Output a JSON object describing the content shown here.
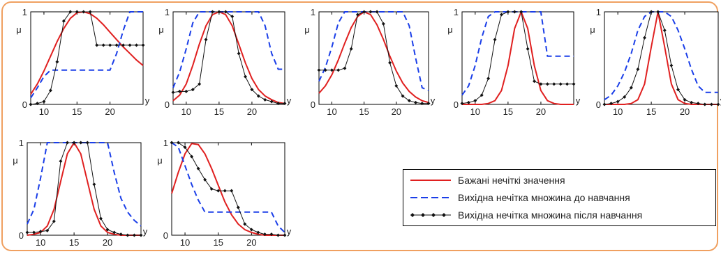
{
  "colors": {
    "desired": "#e02020",
    "before": "#1a3ee8",
    "after": "#111111",
    "frame": "#f0a060"
  },
  "legend": {
    "items": [
      {
        "label": "Бажані нечіткі значення",
        "style": "solid-red"
      },
      {
        "label": "Вихідна нечітка множина до навчання",
        "style": "dashed-blue"
      },
      {
        "label": "Вихідна нечітка множина після навчання",
        "style": "black-diamond-markers"
      }
    ]
  },
  "axis_text": {
    "y_label": "μ",
    "x_label": "y"
  },
  "chart_data": [
    {
      "type": "line",
      "xlim": [
        8,
        25
      ],
      "ylim": [
        0,
        1
      ],
      "xticks": [
        10,
        15,
        20
      ],
      "yticks": [
        0,
        1
      ],
      "series": [
        {
          "role": "desired",
          "x": [
            8,
            9,
            10,
            11,
            12,
            13,
            14,
            15,
            16,
            17,
            18,
            19,
            20,
            21,
            22,
            23,
            24,
            25
          ],
          "values": [
            0.11,
            0.22,
            0.36,
            0.52,
            0.68,
            0.82,
            0.93,
            0.99,
            1.0,
            0.98,
            0.93,
            0.86,
            0.78,
            0.7,
            0.62,
            0.55,
            0.48,
            0.42
          ]
        },
        {
          "role": "before",
          "x": [
            8,
            9,
            10,
            11,
            12,
            13,
            14,
            15,
            16,
            17,
            18,
            19,
            20,
            21,
            22,
            23,
            24,
            25
          ],
          "values": [
            0.07,
            0.18,
            0.3,
            0.37,
            0.37,
            0.37,
            0.37,
            0.37,
            0.37,
            0.37,
            0.37,
            0.37,
            0.37,
            0.55,
            0.8,
            1.0,
            1.0,
            1.0
          ]
        },
        {
          "role": "after",
          "x": [
            8,
            9,
            10,
            11,
            12,
            13,
            14,
            15,
            16,
            17,
            18,
            19,
            20,
            21,
            22,
            23,
            24,
            25
          ],
          "values": [
            0.0,
            0.01,
            0.03,
            0.15,
            0.46,
            0.9,
            1.0,
            1.0,
            1.0,
            1.0,
            0.64,
            0.64,
            0.64,
            0.64,
            0.64,
            0.64,
            0.64,
            0.64
          ]
        }
      ]
    },
    {
      "type": "line",
      "xlim": [
        8,
        25
      ],
      "ylim": [
        0,
        1
      ],
      "xticks": [
        10,
        15,
        20
      ],
      "yticks": [
        0,
        1
      ],
      "series": [
        {
          "role": "desired",
          "x": [
            8,
            9,
            10,
            11,
            12,
            13,
            14,
            15,
            16,
            17,
            18,
            19,
            20,
            21,
            22,
            23,
            24,
            25
          ],
          "values": [
            0.04,
            0.1,
            0.22,
            0.42,
            0.65,
            0.85,
            0.97,
            1.0,
            0.97,
            0.85,
            0.65,
            0.45,
            0.28,
            0.16,
            0.09,
            0.05,
            0.02,
            0.01
          ]
        },
        {
          "role": "before",
          "x": [
            8,
            9,
            10,
            11,
            12,
            13,
            14,
            15,
            16,
            17,
            18,
            19,
            20,
            21,
            22,
            23,
            24,
            25
          ],
          "values": [
            0.18,
            0.35,
            0.6,
            0.88,
            1.0,
            1.0,
            1.0,
            1.0,
            1.0,
            1.0,
            1.0,
            1.0,
            1.0,
            1.0,
            0.85,
            0.55,
            0.38,
            0.38
          ]
        },
        {
          "role": "after",
          "x": [
            8,
            9,
            10,
            11,
            12,
            13,
            14,
            15,
            16,
            17,
            18,
            19,
            20,
            21,
            22,
            23,
            24,
            25
          ],
          "values": [
            0.13,
            0.14,
            0.14,
            0.16,
            0.22,
            0.7,
            1.0,
            1.0,
            1.0,
            0.95,
            0.55,
            0.3,
            0.16,
            0.09,
            0.05,
            0.03,
            0.01,
            0.01
          ]
        }
      ]
    },
    {
      "type": "line",
      "xlim": [
        8,
        25
      ],
      "ylim": [
        0,
        1
      ],
      "xticks": [
        10,
        15,
        20
      ],
      "yticks": [
        0,
        1
      ],
      "series": [
        {
          "role": "desired",
          "x": [
            8,
            9,
            10,
            11,
            12,
            13,
            14,
            15,
            16,
            17,
            18,
            19,
            20,
            21,
            22,
            23,
            24,
            25
          ],
          "values": [
            0.12,
            0.2,
            0.32,
            0.48,
            0.66,
            0.83,
            0.95,
            1.0,
            0.97,
            0.86,
            0.7,
            0.52,
            0.36,
            0.23,
            0.14,
            0.08,
            0.04,
            0.02
          ]
        },
        {
          "role": "before",
          "x": [
            8,
            9,
            10,
            11,
            12,
            13,
            14,
            15,
            16,
            17,
            18,
            19,
            20,
            21,
            22,
            23,
            24,
            25
          ],
          "values": [
            0.25,
            0.4,
            0.62,
            0.88,
            1.0,
            1.0,
            1.0,
            1.0,
            1.0,
            1.0,
            1.0,
            1.0,
            1.0,
            1.0,
            0.85,
            0.5,
            0.18,
            0.15
          ]
        },
        {
          "role": "after",
          "x": [
            8,
            9,
            10,
            11,
            12,
            13,
            14,
            15,
            16,
            17,
            18,
            19,
            20,
            21,
            22,
            23,
            24,
            25
          ],
          "values": [
            0.37,
            0.37,
            0.37,
            0.37,
            0.39,
            0.6,
            0.97,
            1.0,
            1.0,
            1.0,
            0.87,
            0.45,
            0.2,
            0.09,
            0.04,
            0.02,
            0.01,
            0.01
          ]
        }
      ]
    },
    {
      "type": "line",
      "xlim": [
        8,
        25
      ],
      "ylim": [
        0,
        1
      ],
      "xticks": [
        10,
        15,
        20
      ],
      "yticks": [
        0,
        1
      ],
      "series": [
        {
          "role": "desired",
          "x": [
            8,
            9,
            10,
            11,
            12,
            13,
            14,
            15,
            16,
            17,
            18,
            19,
            20,
            21,
            22,
            23,
            24,
            25
          ],
          "values": [
            0.0,
            0.0,
            0.0,
            0.0,
            0.01,
            0.04,
            0.15,
            0.42,
            0.82,
            1.0,
            0.82,
            0.42,
            0.15,
            0.04,
            0.01,
            0.0,
            0.0,
            0.0
          ]
        },
        {
          "role": "before",
          "x": [
            8,
            9,
            10,
            11,
            12,
            13,
            14,
            15,
            16,
            17,
            18,
            19,
            20,
            21,
            22,
            23,
            24,
            25
          ],
          "values": [
            0.1,
            0.2,
            0.42,
            0.72,
            0.95,
            1.0,
            1.0,
            1.0,
            1.0,
            1.0,
            1.0,
            1.0,
            1.0,
            0.52,
            0.52,
            0.52,
            0.52,
            0.52
          ]
        },
        {
          "role": "after",
          "x": [
            8,
            9,
            10,
            11,
            12,
            13,
            14,
            15,
            16,
            17,
            18,
            19,
            20,
            21,
            22,
            23,
            24,
            25
          ],
          "values": [
            0.01,
            0.02,
            0.04,
            0.1,
            0.28,
            0.7,
            0.97,
            1.0,
            1.0,
            1.0,
            0.6,
            0.25,
            0.22,
            0.22,
            0.22,
            0.22,
            0.22,
            0.22
          ]
        }
      ]
    },
    {
      "type": "line",
      "xlim": [
        8,
        25
      ],
      "ylim": [
        0,
        1
      ],
      "xticks": [
        10,
        15,
        20
      ],
      "yticks": [
        0,
        1
      ],
      "series": [
        {
          "role": "desired",
          "x": [
            8,
            9,
            10,
            11,
            12,
            13,
            14,
            15,
            16,
            17,
            18,
            19,
            20,
            21,
            22,
            23,
            24,
            25
          ],
          "values": [
            0.0,
            0.0,
            0.0,
            0.0,
            0.01,
            0.05,
            0.22,
            0.62,
            1.0,
            0.62,
            0.22,
            0.05,
            0.01,
            0.0,
            0.0,
            0.0,
            0.0,
            0.0
          ]
        },
        {
          "role": "before",
          "x": [
            8,
            9,
            10,
            11,
            12,
            13,
            14,
            15,
            16,
            17,
            18,
            19,
            20,
            21,
            22,
            23,
            24,
            25
          ],
          "values": [
            0.05,
            0.1,
            0.2,
            0.35,
            0.55,
            0.8,
            0.95,
            1.0,
            1.0,
            1.0,
            0.95,
            0.8,
            0.6,
            0.38,
            0.2,
            0.13,
            0.13,
            0.13
          ]
        },
        {
          "role": "after",
          "x": [
            8,
            9,
            10,
            11,
            12,
            13,
            14,
            15,
            16,
            17,
            18,
            19,
            20,
            21,
            22,
            23,
            24,
            25
          ],
          "values": [
            0.0,
            0.01,
            0.03,
            0.08,
            0.18,
            0.38,
            0.72,
            1.0,
            1.0,
            0.8,
            0.42,
            0.16,
            0.05,
            0.02,
            0.01,
            0.0,
            0.0,
            0.0
          ]
        }
      ]
    },
    {
      "type": "line",
      "xlim": [
        8,
        25
      ],
      "ylim": [
        0,
        1
      ],
      "xticks": [
        10,
        15,
        20
      ],
      "yticks": [
        0,
        1
      ],
      "series": [
        {
          "role": "desired",
          "x": [
            8,
            9,
            10,
            11,
            12,
            13,
            14,
            15,
            16,
            17,
            18,
            19,
            20,
            21,
            22,
            23,
            24,
            25
          ],
          "values": [
            0.0,
            0.01,
            0.03,
            0.1,
            0.28,
            0.58,
            0.88,
            1.0,
            0.88,
            0.58,
            0.28,
            0.1,
            0.03,
            0.01,
            0.0,
            0.0,
            0.0,
            0.0
          ]
        },
        {
          "role": "before",
          "x": [
            8,
            9,
            10,
            11,
            12,
            13,
            14,
            15,
            16,
            17,
            18,
            19,
            20,
            21,
            22,
            23,
            24,
            25
          ],
          "values": [
            0.12,
            0.28,
            0.62,
            1.0,
            1.0,
            1.0,
            1.0,
            1.0,
            1.0,
            1.0,
            1.0,
            1.0,
            1.0,
            0.68,
            0.4,
            0.25,
            0.16,
            0.1
          ]
        },
        {
          "role": "after",
          "x": [
            8,
            9,
            10,
            11,
            12,
            13,
            14,
            15,
            16,
            17,
            18,
            19,
            20,
            21,
            22,
            23,
            24,
            25
          ],
          "values": [
            0.03,
            0.03,
            0.04,
            0.05,
            0.15,
            0.8,
            1.0,
            1.0,
            1.0,
            1.0,
            0.55,
            0.18,
            0.06,
            0.03,
            0.01,
            0.0,
            0.0,
            0.0
          ]
        }
      ]
    },
    {
      "type": "line",
      "xlim": [
        8,
        25
      ],
      "ylim": [
        0,
        1
      ],
      "xticks": [
        10,
        15,
        20
      ],
      "yticks": [
        0,
        1
      ],
      "series": [
        {
          "role": "desired",
          "x": [
            8,
            9,
            10,
            11,
            12,
            13,
            14,
            15,
            16,
            17,
            18,
            19,
            20,
            21,
            22,
            23,
            24,
            25
          ],
          "values": [
            0.45,
            0.68,
            0.88,
            0.99,
            0.98,
            0.88,
            0.72,
            0.54,
            0.36,
            0.22,
            0.12,
            0.06,
            0.03,
            0.01,
            0.0,
            0.0,
            0.0,
            0.0
          ]
        },
        {
          "role": "before",
          "x": [
            8,
            9,
            10,
            11,
            12,
            13,
            14,
            15,
            16,
            17,
            18,
            19,
            20,
            21,
            22,
            23,
            24,
            25
          ],
          "values": [
            1.0,
            0.95,
            0.75,
            0.55,
            0.38,
            0.25,
            0.25,
            0.25,
            0.25,
            0.25,
            0.25,
            0.25,
            0.25,
            0.25,
            0.25,
            0.25,
            0.1,
            0.03
          ]
        },
        {
          "role": "after",
          "x": [
            8,
            9,
            10,
            11,
            12,
            13,
            14,
            15,
            16,
            17,
            18,
            19,
            20,
            21,
            22,
            23,
            24,
            25
          ],
          "values": [
            1.0,
            1.0,
            0.95,
            0.85,
            0.72,
            0.6,
            0.5,
            0.48,
            0.48,
            0.48,
            0.3,
            0.12,
            0.06,
            0.03,
            0.01,
            0.01,
            0.0,
            0.0
          ]
        }
      ]
    }
  ]
}
